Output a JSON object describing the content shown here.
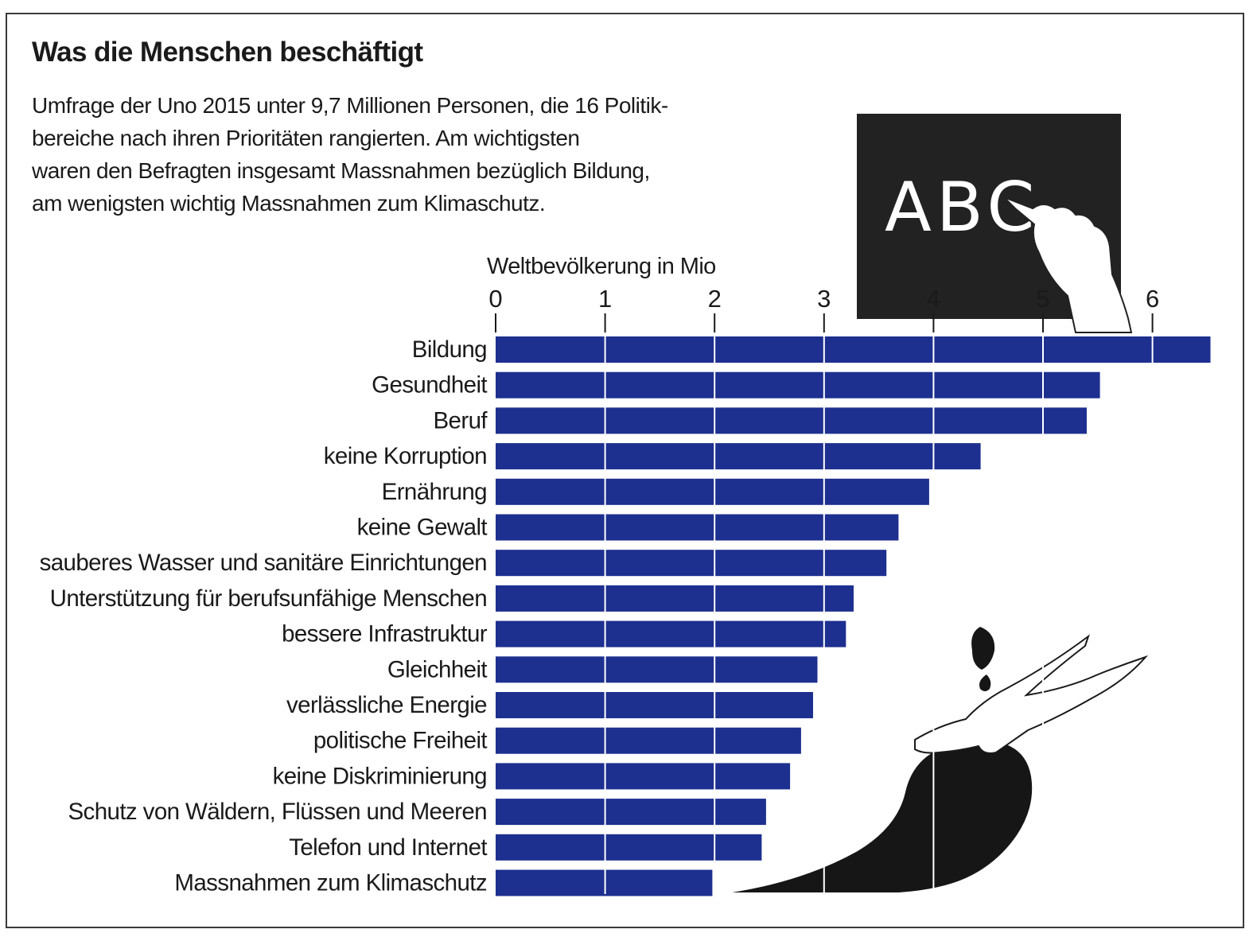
{
  "title": "Was die Menschen beschäftigt",
  "subtitle_lines": [
    "Umfrage der Uno 2015 unter 9,7 Millionen Personen, die 16 Politik-",
    "bereiche nach ihren Prioritäten rangierten. Am wichtigsten",
    "waren den Befragten insgesamt Massnahmen bezüglich Bildung,",
    "am wenigsten wichtig Massnahmen zum Klimaschutz."
  ],
  "illustration": {
    "blackboard_text": "ABC",
    "icons": [
      "blackboard-chalk-hand-icon",
      "oil-spill-hands-icon"
    ]
  },
  "colors": {
    "bar": "#1d2f8f",
    "text": "#1a1a1a",
    "blackboard": "#222222"
  },
  "chart_data": {
    "type": "bar",
    "orientation": "horizontal",
    "xlabel": "Weltbevölkerung in Mio",
    "xlim": [
      0,
      6.55
    ],
    "xticks": [
      0,
      1,
      2,
      3,
      4,
      5,
      6
    ],
    "xtick_labels": [
      "0",
      "1",
      "2",
      "3",
      "4",
      "5",
      "6"
    ],
    "grid": true,
    "categories": [
      "Bildung",
      "Gesundheit",
      "Beruf",
      "keine Korruption",
      "Ernährung",
      "keine Gewalt",
      "sauberes Wasser und sanitäre Einrichtungen",
      "Unterstützung für berufsunfähige Menschen",
      "bessere Infrastruktur",
      "Gleichheit",
      "verlässliche Energie",
      "politische Freiheit",
      "keine Diskriminierung",
      "Schutz von Wäldern, Flüssen und Meeren",
      "Telefon und Internet",
      "Massnahmen zum Klimaschutz"
    ],
    "values": [
      6.53,
      5.52,
      5.4,
      4.43,
      3.96,
      3.68,
      3.57,
      3.27,
      3.2,
      2.94,
      2.9,
      2.79,
      2.69,
      2.47,
      2.43,
      1.98
    ]
  }
}
